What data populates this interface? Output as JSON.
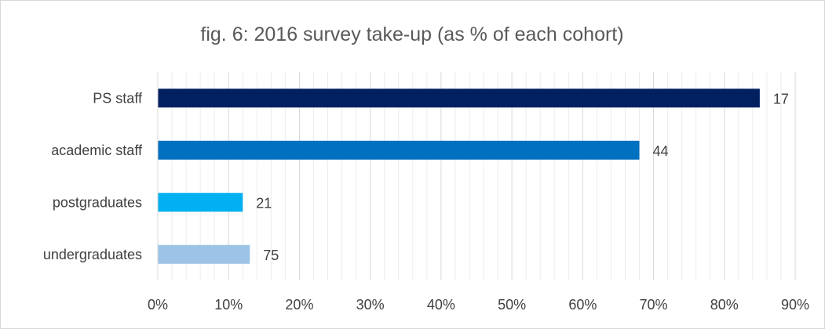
{
  "chart_data": {
    "type": "bar",
    "orientation": "horizontal",
    "title": "fig. 6: 2016 survey take-up (as % of each cohort)",
    "categories": [
      "PS staff",
      "academic staff",
      "postgraduates",
      "undergraduates"
    ],
    "values": [
      85,
      68,
      12,
      13
    ],
    "data_labels": [
      "17",
      "44",
      "21",
      "75"
    ],
    "colors": [
      "#002060",
      "#0070C0",
      "#00B0F0",
      "#9DC3E6"
    ],
    "xlim": [
      0,
      90
    ],
    "x_ticks": [
      0,
      10,
      20,
      30,
      40,
      50,
      60,
      70,
      80,
      90
    ],
    "x_tick_labels": [
      "0%",
      "10%",
      "20%",
      "30%",
      "40%",
      "50%",
      "60%",
      "70%",
      "80%",
      "90%"
    ],
    "grid": true,
    "legend": "none"
  }
}
